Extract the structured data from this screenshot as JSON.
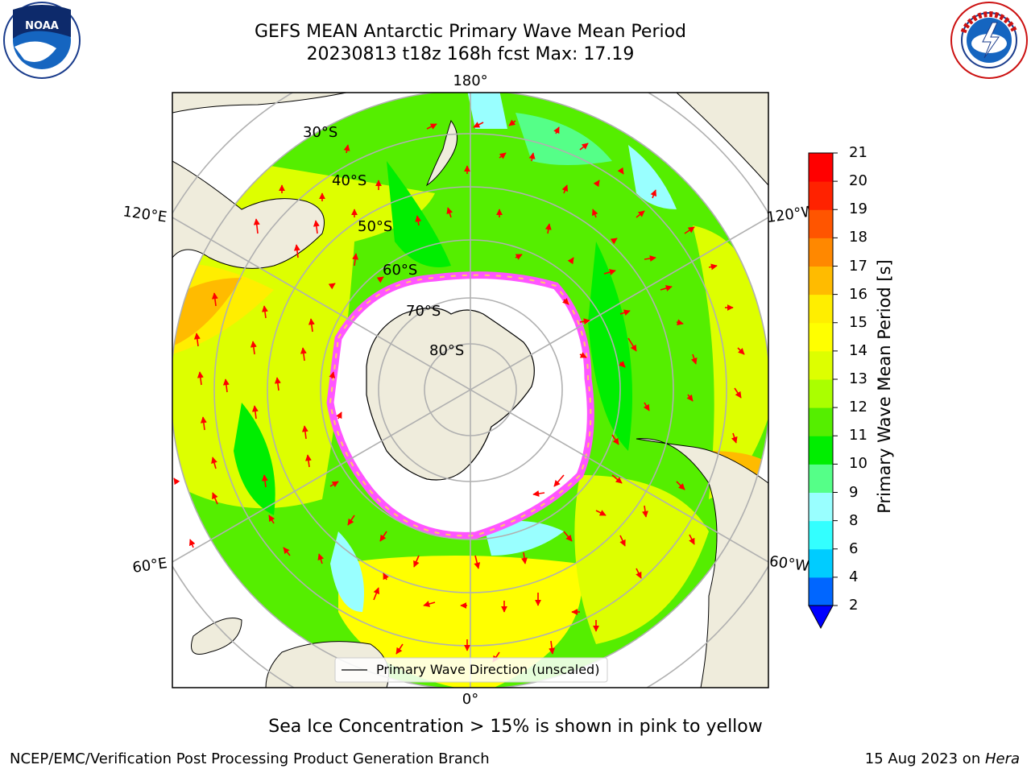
{
  "header": {
    "title_line1": "GEFS MEAN Antarctic Primary Wave Mean Period",
    "title_line2": "20230813 t18z 168h fcst   Max: 17.19",
    "logo_left": "noaa-logo",
    "logo_left_text": "NOAA",
    "logo_right": "national-weather-service-logo",
    "logo_right_text": "NATIONAL WEATHER SERVICE"
  },
  "map": {
    "projection": "south-polar-stereographic",
    "longitude_labels": {
      "top": "180°",
      "left_upper": "120°E",
      "right_upper": "120°W",
      "left_lower": "60°E",
      "right_lower": "60°W",
      "bottom": "0°"
    },
    "latitude_labels": [
      "30°S",
      "40°S",
      "50°S",
      "60°S",
      "70°S",
      "80°S"
    ],
    "legend_label": "Primary Wave Direction (unscaled)",
    "arrow_color": "#ff0000",
    "land_color": "#efecdc",
    "sea_ice_colors": [
      "#ff55ff",
      "#ff99cc",
      "#ffcc66"
    ]
  },
  "colorbar": {
    "label": "Primary Wave Mean Period [s]",
    "ticks": [
      "2",
      "4",
      "6",
      "8",
      "9",
      "10",
      "11",
      "12",
      "13",
      "14",
      "15",
      "16",
      "17",
      "18",
      "19",
      "20",
      "21"
    ],
    "colors": [
      "#0066ff",
      "#00ccff",
      "#33ffff",
      "#99ffff",
      "#55ff88",
      "#00ee00",
      "#55ee00",
      "#aaff00",
      "#ddff00",
      "#ffff00",
      "#ffee00",
      "#ffbb00",
      "#ff8800",
      "#ff5500",
      "#ff2200",
      "#ff0000"
    ],
    "under_color": "#0000ff"
  },
  "footer": {
    "subtitle": "Sea Ice Concentration > 15% is shown in pink to yellow",
    "left": "NCEP/EMC/Verification Post Processing Product Generation Branch",
    "right_date": "15 Aug 2023 on ",
    "right_host": "Hera"
  }
}
